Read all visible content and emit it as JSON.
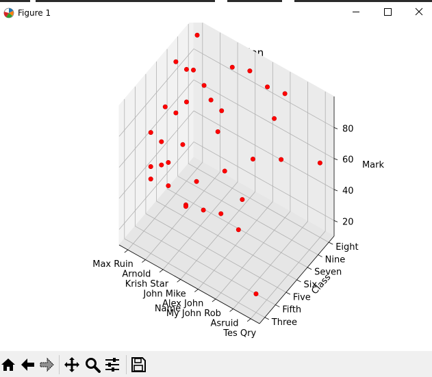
{
  "window": {
    "title": "Figure 1",
    "icon": "matplotlib-icon",
    "controls": [
      "minimize-icon",
      "maximize-icon",
      "close-icon"
    ]
  },
  "toolbar": {
    "buttons": [
      "home-icon",
      "back-arrow-icon",
      "forward-arrow-icon",
      "pan-icon",
      "zoom-icon",
      "configure-subplots-icon",
      "save-icon"
    ]
  },
  "chart_data": {
    "type": "scatter3d",
    "title": "3D Visualization",
    "xlabel": "Name",
    "ylabel": "Class",
    "zlabel": "Mark",
    "x_ticks": [
      "Max Ruin",
      "Arnold",
      "Krish Star",
      "John Mike",
      "Alex John",
      "My John Rob",
      "Asruid",
      "Tes Qry"
    ],
    "y_ticks": [
      "Three",
      "Fifth",
      "Five",
      "Six",
      "Seven",
      "Nine",
      "Eight"
    ],
    "z_ticks": [
      20,
      40,
      60,
      80
    ],
    "marker_color": "#ff0000",
    "grid": true,
    "points": [
      {
        "name": "Max Ruin",
        "class": "Seven",
        "mark": 95
      },
      {
        "name": "Max Ruin",
        "class": "Eight",
        "mark": 96
      },
      {
        "name": "Max Ruin",
        "class": "Nine",
        "mark": 82
      },
      {
        "name": "Max Ruin",
        "class": "Six",
        "mark": 74
      },
      {
        "name": "Max Ruin",
        "class": "Seven",
        "mark": 62
      },
      {
        "name": "Max Ruin",
        "class": "Nine",
        "mark": 61
      },
      {
        "name": "Arnold",
        "class": "Seven",
        "mark": 96
      },
      {
        "name": "Arnold",
        "class": "Nine",
        "mark": 78
      },
      {
        "name": "Arnold",
        "class": "Six",
        "mark": 56
      },
      {
        "name": "Arnold",
        "class": "Three",
        "mark": 88
      },
      {
        "name": "Arnold",
        "class": "Fifth",
        "mark": 74
      },
      {
        "name": "Arnold",
        "class": "Three",
        "mark": 66
      },
      {
        "name": "Arnold",
        "class": "Fifth",
        "mark": 59
      },
      {
        "name": "Arnold",
        "class": "Three",
        "mark": 58
      },
      {
        "name": "Krish Star",
        "class": "Eight",
        "mark": 88
      },
      {
        "name": "Krish Star",
        "class": "Seven",
        "mark": 83
      },
      {
        "name": "Krish Star",
        "class": "Nine",
        "mark": 68
      },
      {
        "name": "Krish Star",
        "class": "Three",
        "mark": 75
      },
      {
        "name": "Krish Star",
        "class": "Three",
        "mark": 60
      },
      {
        "name": "John Mike",
        "class": "Eight",
        "mark": 92
      },
      {
        "name": "John Mike",
        "class": "Six",
        "mark": 77
      },
      {
        "name": "John Mike",
        "class": "Fifth",
        "mark": 61
      },
      {
        "name": "John Mike",
        "class": "Three",
        "mark": 54
      },
      {
        "name": "John Mike",
        "class": "Three",
        "mark": 53
      },
      {
        "name": "Alex John",
        "class": "Eight",
        "mark": 88
      },
      {
        "name": "Alex John",
        "class": "Five",
        "mark": 66
      },
      {
        "name": "Alex John",
        "class": "Three",
        "mark": 57
      },
      {
        "name": "My John Rob",
        "class": "Eight",
        "mark": 90
      },
      {
        "name": "My John Rob",
        "class": "Nine",
        "mark": 82
      },
      {
        "name": "My John Rob",
        "class": "Six",
        "mark": 72
      },
      {
        "name": "My John Rob",
        "class": "Five",
        "mark": 54
      },
      {
        "name": "My John Rob",
        "class": "Three",
        "mark": 61
      },
      {
        "name": "Asruid",
        "class": "Seven",
        "mark": 70
      },
      {
        "name": "Asruid",
        "class": "Three",
        "mark": 57
      },
      {
        "name": "Tes Qry",
        "class": "Eight",
        "mark": 58
      },
      {
        "name": "Tes Qry",
        "class": "Three",
        "mark": 22
      }
    ]
  }
}
